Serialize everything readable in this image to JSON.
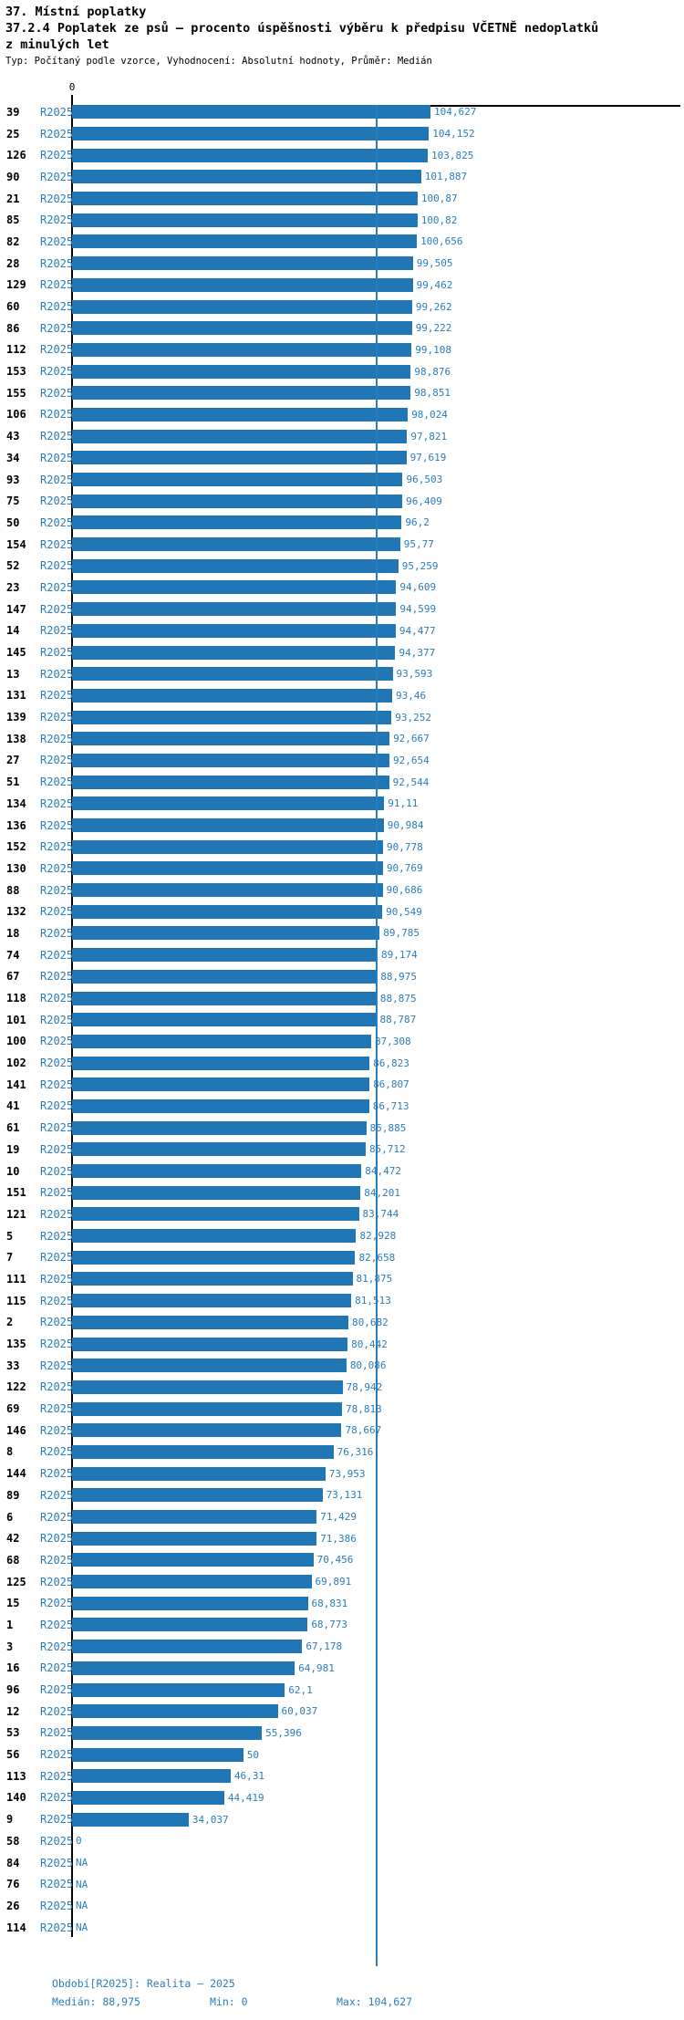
{
  "header": {
    "title_line1": "37. Místní poplatky",
    "title_line2": "37.2.4 Poplatek ze psů – procento úspěšnosti výběru k předpisu VČETNĚ nedoplatků",
    "title_line3": "z minulých let",
    "subtitle": "Typ: Počítaný podle vzorce, Vyhodnocení: Absolutní hodnoty, Průměr: Medián"
  },
  "axis": {
    "zero_tick_label": "0"
  },
  "colors": {
    "bar": "#2176b5",
    "blue_text": "#2b7cba",
    "median_line": "#2b7cba",
    "axis": "#000000"
  },
  "chart_data": {
    "type": "bar",
    "orientation": "horizontal",
    "series_name": "R2025",
    "xlabel": "",
    "ylabel": "",
    "xlim": [
      0,
      110
    ],
    "grid": false,
    "median_value": 88.975,
    "max_value": 104.627,
    "min_value": 0,
    "na_text": "NA",
    "categories": [
      "39",
      "25",
      "126",
      "90",
      "21",
      "85",
      "82",
      "28",
      "129",
      "60",
      "86",
      "112",
      "153",
      "155",
      "106",
      "43",
      "34",
      "93",
      "75",
      "50",
      "154",
      "52",
      "23",
      "147",
      "14",
      "145",
      "13",
      "131",
      "139",
      "138",
      "27",
      "51",
      "134",
      "136",
      "152",
      "130",
      "88",
      "132",
      "18",
      "74",
      "67",
      "118",
      "101",
      "100",
      "102",
      "141",
      "41",
      "61",
      "19",
      "10",
      "151",
      "121",
      "5",
      "7",
      "111",
      "115",
      "2",
      "135",
      "33",
      "122",
      "69",
      "146",
      "8",
      "144",
      "89",
      "6",
      "42",
      "68",
      "125",
      "15",
      "1",
      "3",
      "16",
      "96",
      "12",
      "53",
      "56",
      "113",
      "140",
      "9",
      "58",
      "84",
      "76",
      "26",
      "114"
    ],
    "values": [
      104.627,
      104.152,
      103.825,
      101.887,
      100.87,
      100.82,
      100.656,
      99.505,
      99.462,
      99.262,
      99.222,
      99.108,
      98.876,
      98.851,
      98.024,
      97.821,
      97.619,
      96.503,
      96.409,
      96.2,
      95.77,
      95.259,
      94.609,
      94.599,
      94.477,
      94.377,
      93.593,
      93.46,
      93.252,
      92.667,
      92.654,
      92.544,
      91.11,
      90.984,
      90.778,
      90.769,
      90.686,
      90.549,
      89.785,
      89.174,
      88.975,
      88.875,
      88.787,
      87.308,
      86.823,
      86.807,
      86.713,
      85.885,
      85.712,
      84.472,
      84.201,
      83.744,
      82.928,
      82.658,
      81.875,
      81.513,
      80.682,
      80.442,
      80.086,
      78.942,
      78.813,
      78.667,
      76.316,
      73.953,
      73.131,
      71.429,
      71.386,
      70.456,
      69.891,
      68.831,
      68.773,
      67.178,
      64.981,
      62.1,
      60.037,
      55.396,
      50,
      46.31,
      44.419,
      34.037,
      0,
      null,
      null,
      null,
      null
    ],
    "value_labels": [
      "104,627",
      "104,152",
      "103,825",
      "101,887",
      "100,87",
      "100,82",
      "100,656",
      "99,505",
      "99,462",
      "99,262",
      "99,222",
      "99,108",
      "98,876",
      "98,851",
      "98,024",
      "97,821",
      "97,619",
      "96,503",
      "96,409",
      "96,2",
      "95,77",
      "95,259",
      "94,609",
      "94,599",
      "94,477",
      "94,377",
      "93,593",
      "93,46",
      "93,252",
      "92,667",
      "92,654",
      "92,544",
      "91,11",
      "90,984",
      "90,778",
      "90,769",
      "90,686",
      "90,549",
      "89,785",
      "89,174",
      "88,975",
      "88,875",
      "88,787",
      "87,308",
      "86,823",
      "86,807",
      "86,713",
      "85,885",
      "85,712",
      "84,472",
      "84,201",
      "83,744",
      "82,928",
      "82,658",
      "81,875",
      "81,513",
      "80,682",
      "80,442",
      "80,086",
      "78,942",
      "78,813",
      "78,667",
      "76,316",
      "73,953",
      "73,131",
      "71,429",
      "71,386",
      "70,456",
      "69,891",
      "68,831",
      "68,773",
      "67,178",
      "64,981",
      "62,1",
      "60,037",
      "55,396",
      "50",
      "46,31",
      "44,419",
      "34,037",
      "0",
      "NA",
      "NA",
      "NA",
      "NA"
    ]
  },
  "footer": {
    "period": "Období[R2025]: Realita – 2025",
    "median": "Medián: 88,975",
    "min": "Min: 0",
    "max": "Max: 104,627"
  }
}
